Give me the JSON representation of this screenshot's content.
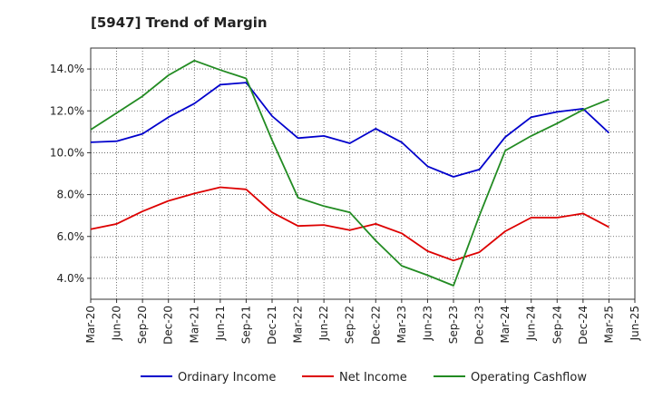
{
  "chart_data": {
    "type": "line",
    "title": "[5947]  Trend of Margin",
    "xlabel": "",
    "ylabel": "",
    "x": [
      "Mar-20",
      "Jun-20",
      "Sep-20",
      "Dec-20",
      "Mar-21",
      "Jun-21",
      "Sep-21",
      "Dec-21",
      "Mar-22",
      "Jun-22",
      "Sep-22",
      "Dec-22",
      "Mar-23",
      "Jun-23",
      "Sep-23",
      "Dec-23",
      "Mar-24",
      "Jun-24",
      "Sep-24",
      "Dec-24",
      "Mar-25",
      "Jun-25"
    ],
    "ylim": [
      3.0,
      15.0
    ],
    "yticks": [
      4.0,
      6.0,
      8.0,
      10.0,
      12.0,
      14.0
    ],
    "ytick_labels": [
      "4.0%",
      "6.0%",
      "8.0%",
      "10.0%",
      "12.0%",
      "14.0%"
    ],
    "grid": true,
    "legend_position": "bottom",
    "series": [
      {
        "name": "Ordinary Income",
        "color": "#0000cc",
        "values": [
          10.5,
          10.55,
          10.9,
          11.7,
          12.35,
          13.25,
          13.35,
          11.75,
          10.7,
          10.8,
          10.45,
          11.15,
          10.5,
          9.35,
          8.85,
          9.2,
          10.75,
          11.7,
          11.95,
          12.1,
          10.95,
          null
        ]
      },
      {
        "name": "Net Income",
        "color": "#dd0000",
        "values": [
          6.35,
          6.6,
          7.2,
          7.7,
          8.05,
          8.35,
          8.25,
          7.15,
          6.5,
          6.55,
          6.3,
          6.6,
          6.15,
          5.3,
          4.85,
          5.25,
          6.25,
          6.9,
          6.9,
          7.1,
          6.45,
          null
        ]
      },
      {
        "name": "Operating Cashflow",
        "color": "#228b22",
        "values": [
          11.1,
          11.9,
          12.7,
          13.7,
          14.4,
          13.95,
          13.55,
          10.6,
          7.85,
          7.45,
          7.15,
          5.8,
          4.6,
          4.15,
          3.65,
          7.0,
          10.1,
          10.8,
          11.4,
          12.05,
          12.55,
          null
        ]
      }
    ]
  }
}
